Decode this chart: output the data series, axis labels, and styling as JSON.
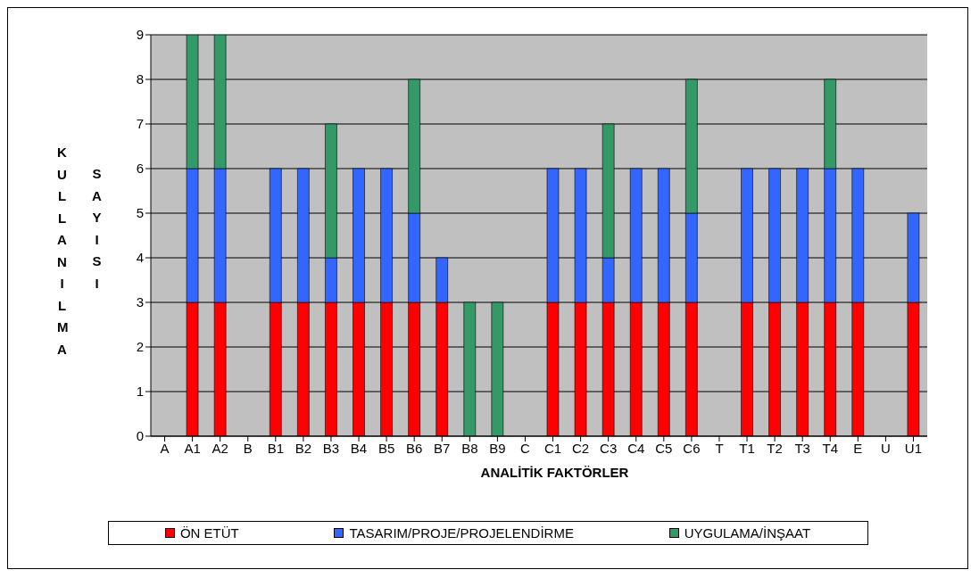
{
  "chart_data": {
    "type": "bar",
    "stacked": true,
    "xlabel": "ANALİTİK FAKTÖRLER",
    "ylabel": "KULLANILMA SAYISI",
    "categories": [
      "A",
      "A1",
      "A2",
      "B",
      "B1",
      "B2",
      "B3",
      "B4",
      "B5",
      "B6",
      "B7",
      "B8",
      "B9",
      "C",
      "C1",
      "C2",
      "C3",
      "C4",
      "C5",
      "C6",
      "T",
      "T1",
      "T2",
      "T3",
      "T4",
      "E",
      "U",
      "U1"
    ],
    "series": [
      {
        "name": "ÖN ETÜT",
        "color": "#ff0000",
        "values": [
          null,
          3,
          3,
          null,
          3,
          3,
          3,
          3,
          3,
          3,
          3,
          0,
          0,
          null,
          3,
          3,
          3,
          3,
          3,
          3,
          null,
          3,
          3,
          3,
          3,
          3,
          null,
          3
        ]
      },
      {
        "name": "TASARIM/PROJE/PROJELENDİRME",
        "color": "#3366ff",
        "values": [
          null,
          3,
          3,
          null,
          3,
          3,
          1,
          3,
          3,
          2,
          1,
          0,
          0,
          null,
          3,
          3,
          1,
          3,
          3,
          2,
          null,
          3,
          3,
          3,
          3,
          3,
          null,
          2
        ]
      },
      {
        "name": "UYGULAMA/İNŞAAT",
        "color": "#339966",
        "values": [
          null,
          3,
          3,
          null,
          0,
          0,
          3,
          0,
          0,
          3,
          0,
          3,
          3,
          null,
          0,
          0,
          3,
          0,
          0,
          3,
          null,
          0,
          0,
          0,
          2,
          0,
          null,
          0
        ]
      }
    ],
    "ylim": [
      0,
      9
    ],
    "yticks": [
      0,
      1,
      2,
      3,
      4,
      5,
      6,
      7,
      8,
      9
    ],
    "grid": "y",
    "legend": "bottom"
  }
}
